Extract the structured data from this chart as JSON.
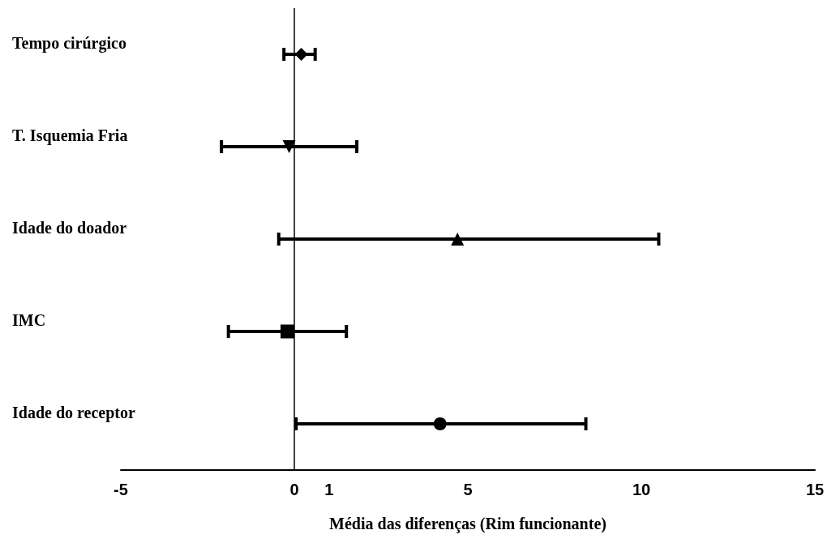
{
  "chart_data": {
    "type": "scatter",
    "orientation": "horizontal",
    "xlabel": "Média das diferenças (Rim funcionante)",
    "categories": [
      "Tempo cirúrgico",
      "T. Isquemia Fria",
      "Idade do doador",
      "IMC",
      "Idade do receptor"
    ],
    "xlim": [
      -5,
      15
    ],
    "xticks": [
      -5,
      0,
      1,
      5,
      10,
      15
    ],
    "grid": false,
    "ref_lines": [
      {
        "axis": "x",
        "value": 0,
        "color": "#000000"
      }
    ],
    "series": [
      {
        "color": "#000000",
        "marker": "diamond",
        "values": [
          0.2,
          null,
          null,
          null,
          null
        ],
        "errors": [
          [
            -0.3,
            0.6
          ],
          null,
          null,
          null,
          null
        ]
      },
      {
        "color": "#000000",
        "marker": "triangle-down",
        "values": [
          null,
          -0.15,
          null,
          null,
          null
        ],
        "errors": [
          null,
          [
            -2.1,
            1.8
          ],
          null,
          null,
          null
        ]
      },
      {
        "color": "#000000",
        "marker": "triangle",
        "values": [
          null,
          null,
          4.7,
          null,
          null
        ],
        "errors": [
          null,
          null,
          [
            -0.45,
            10.5
          ],
          null,
          null
        ]
      },
      {
        "color": "#000000",
        "marker": "square",
        "values": [
          null,
          null,
          null,
          -0.2,
          null
        ],
        "errors": [
          null,
          null,
          null,
          [
            -1.9,
            1.5
          ],
          null
        ]
      },
      {
        "color": "#000000",
        "marker": "circle",
        "values": [
          null,
          null,
          null,
          null,
          4.2
        ],
        "errors": [
          null,
          null,
          null,
          null,
          [
            0.05,
            8.4
          ]
        ]
      }
    ]
  }
}
